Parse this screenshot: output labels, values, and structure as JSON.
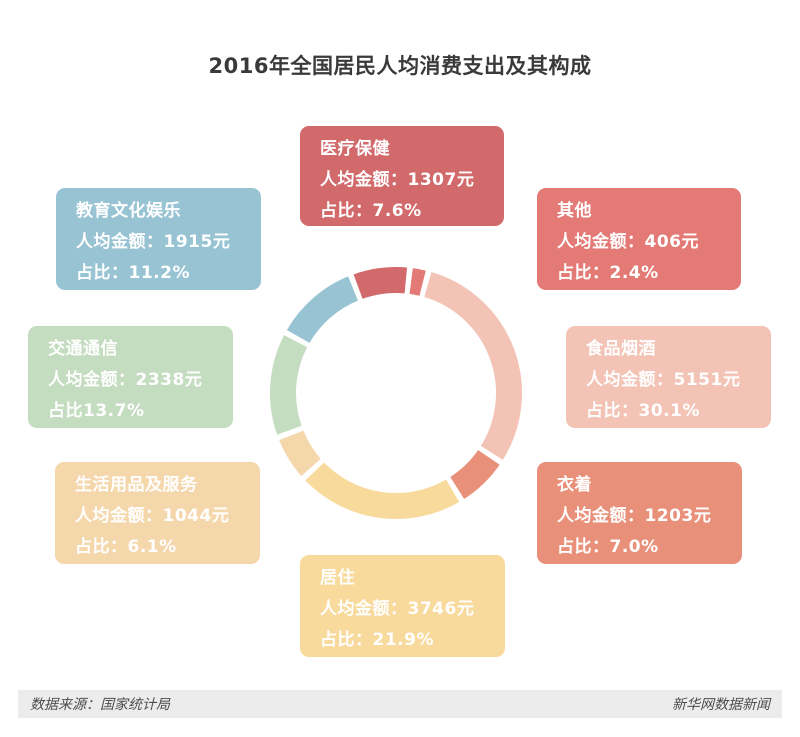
{
  "chart_data": {
    "type": "pie",
    "title": "2016年全国居民人均消费支出及其构成",
    "amount_label": "人均金额：",
    "unit": "元",
    "share_label": "占比：",
    "series": [
      {
        "key": "medical",
        "name": "医疗保健",
        "amount": 1307,
        "share": 7.6,
        "color": "#d26a6c",
        "amount_text": "人均金额：1307元",
        "share_text": "占比：7.6%"
      },
      {
        "key": "other",
        "name": "其他",
        "amount": 406,
        "share": 2.4,
        "color": "#e47a75",
        "amount_text": "人均金额：406元",
        "share_text": "占比：2.4%"
      },
      {
        "key": "food",
        "name": "食品烟酒",
        "amount": 5151,
        "share": 30.1,
        "color": "#f3c3b6",
        "amount_text": "人均金额：5151元",
        "share_text": "占比：30.1%"
      },
      {
        "key": "clothing",
        "name": "衣着",
        "amount": 1203,
        "share": 7.0,
        "color": "#e9907a",
        "amount_text": "人均金额：1203元",
        "share_text": "占比：7.0%"
      },
      {
        "key": "housing",
        "name": "居住",
        "amount": 3746,
        "share": 21.9,
        "color": "#f8da9c",
        "amount_text": "人均金额：3746元",
        "share_text": "占比：21.9%"
      },
      {
        "key": "goods",
        "name": "生活用品及服务",
        "amount": 1044,
        "share": 6.1,
        "color": "#f5d7ac",
        "amount_text": "人均金额：1044元",
        "share_text": "占比：6.1%"
      },
      {
        "key": "transport",
        "name": "交通通信",
        "amount": 2338,
        "share": 13.7,
        "color": "#c4dcbf",
        "amount_text": "人均金额：2338元",
        "share_text": "占比13.7%"
      },
      {
        "key": "education",
        "name": "教育文化娱乐",
        "amount": 1915,
        "share": 11.2,
        "color": "#97c3d3",
        "amount_text": "人均金额：1915元",
        "share_text": "占比：11.2%"
      }
    ]
  },
  "footer": {
    "source": "数据来源：国家统计局",
    "publisher": "新华网数据新闻"
  }
}
